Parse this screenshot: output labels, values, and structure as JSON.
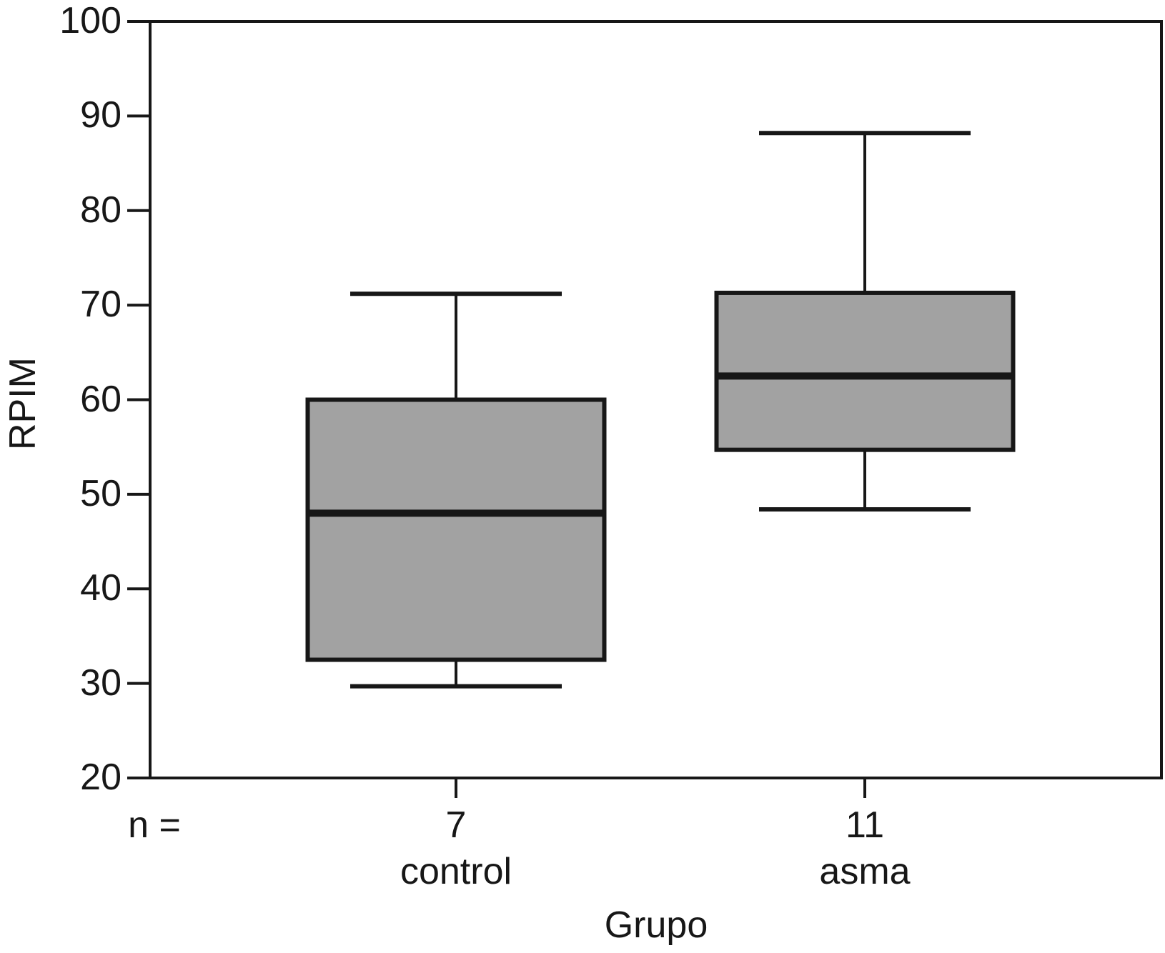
{
  "chart_data": {
    "type": "boxplot",
    "title": "",
    "ylabel": "RPIM",
    "xlabel": "Grupo",
    "n_label": "n =",
    "ylim": [
      20,
      100
    ],
    "yticks": [
      20,
      30,
      40,
      50,
      60,
      70,
      80,
      90,
      100
    ],
    "grid": false,
    "legend": "none",
    "groups": [
      {
        "label": "control",
        "n": "7",
        "whisker_low": 29.7,
        "q1": 32.5,
        "median": 48.0,
        "q3": 60.0,
        "whisker_high": 71.2
      },
      {
        "label": "asma",
        "n": "11",
        "whisker_low": 48.4,
        "q1": 54.7,
        "median": 62.5,
        "q3": 71.3,
        "whisker_high": 88.2
      }
    ],
    "colors": {
      "box_fill": "#a2a2a2",
      "line": "#171717",
      "background": "#ffffff"
    }
  }
}
